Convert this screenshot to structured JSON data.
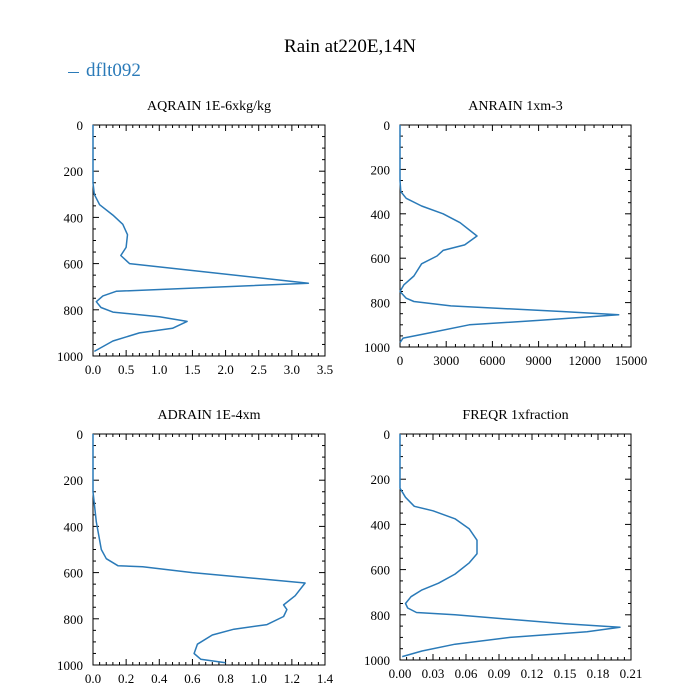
{
  "title": "Rain at220E,14N",
  "legend": {
    "label": "dflt092",
    "color": "#2a7ab8"
  },
  "chart_data": [
    {
      "type": "line",
      "title": "AQRAIN  1E-6xkg/kg",
      "xlim": [
        0,
        3.5
      ],
      "ylim": [
        1000,
        0
      ],
      "xticks": [
        "0.0",
        "0.5",
        "1.0",
        "1.5",
        "2.0",
        "2.5",
        "3.0",
        "3.5"
      ],
      "yticks": [
        "0",
        "200",
        "400",
        "600",
        "800",
        "1000"
      ],
      "series": [
        {
          "name": "dflt092",
          "x": [
            0,
            0,
            0.02,
            0.1,
            0.3,
            0.45,
            0.52,
            0.5,
            0.42,
            0.55,
            3.25,
            0.35,
            0.15,
            0.05,
            0.12,
            0.3,
            1.0,
            1.42,
            1.2,
            0.7,
            0.3,
            0.02
          ],
          "y": [
            0,
            250,
            300,
            345,
            390,
            430,
            475,
            530,
            565,
            600,
            685,
            720,
            740,
            765,
            790,
            810,
            830,
            850,
            880,
            900,
            935,
            980
          ]
        }
      ]
    },
    {
      "type": "line",
      "title": "ANRAIN  1xm-3",
      "xlim": [
        0,
        15000
      ],
      "ylim": [
        1000,
        0
      ],
      "xticks": [
        "0",
        "3000",
        "6000",
        "9000",
        "12000",
        "15000"
      ],
      "yticks": [
        "0",
        "200",
        "400",
        "600",
        "800",
        "1000"
      ],
      "series": [
        {
          "name": "dflt092",
          "x": [
            0,
            0,
            50,
            400,
            1400,
            2800,
            3900,
            5000,
            4200,
            2800,
            2400,
            1400,
            900,
            250,
            0,
            400,
            900,
            3300,
            10500,
            14200,
            9000,
            4500,
            2000,
            200,
            0
          ],
          "y": [
            0,
            250,
            300,
            330,
            365,
            400,
            440,
            500,
            540,
            565,
            590,
            625,
            680,
            720,
            750,
            780,
            795,
            815,
            840,
            855,
            880,
            900,
            935,
            960,
            980
          ]
        }
      ]
    },
    {
      "type": "line",
      "title": "ADRAIN  1E-4xm",
      "xlim": [
        0,
        1.4
      ],
      "ylim": [
        1000,
        0
      ],
      "xticks": [
        "0.0",
        "0.2",
        "0.4",
        "0.6",
        "0.8",
        "1.0",
        "1.2",
        "1.4"
      ],
      "yticks": [
        "0",
        "200",
        "400",
        "600",
        "800",
        "1000"
      ],
      "series": [
        {
          "name": "dflt092",
          "x": [
            0,
            0,
            0.02,
            0.05,
            0.08,
            0.15,
            0.3,
            0.6,
            1.28,
            1.22,
            1.15,
            1.17,
            1.15,
            1.05,
            0.85,
            0.72,
            0.63,
            0.61,
            0.65,
            0.8
          ],
          "y": [
            0,
            250,
            380,
            500,
            540,
            570,
            575,
            600,
            645,
            700,
            740,
            760,
            790,
            825,
            845,
            870,
            910,
            950,
            975,
            990
          ]
        }
      ]
    },
    {
      "type": "line",
      "title": "FREQR  1xfraction",
      "xlim": [
        0,
        0.21
      ],
      "ylim": [
        1000,
        0
      ],
      "xticks": [
        "0.00",
        "0.03",
        "0.06",
        "0.09",
        "0.12",
        "0.15",
        "0.18",
        "0.21"
      ],
      "yticks": [
        "0",
        "200",
        "400",
        "600",
        "800",
        "1000"
      ],
      "series": [
        {
          "name": "dflt092",
          "x": [
            0,
            0,
            0.005,
            0.013,
            0.03,
            0.05,
            0.063,
            0.07,
            0.07,
            0.063,
            0.05,
            0.035,
            0.02,
            0.01,
            0.005,
            0.007,
            0.015,
            0.05,
            0.15,
            0.2,
            0.17,
            0.1,
            0.05,
            0.02,
            0.002
          ],
          "y": [
            0,
            240,
            280,
            320,
            340,
            375,
            420,
            470,
            530,
            570,
            620,
            660,
            690,
            720,
            750,
            770,
            790,
            800,
            840,
            855,
            875,
            900,
            930,
            960,
            985
          ]
        }
      ]
    }
  ]
}
